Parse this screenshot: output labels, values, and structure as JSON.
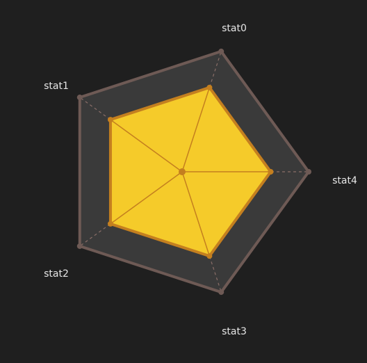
{
  "theme": {
    "background": "#1f1f1f",
    "outer_fill": "#3a3a3a",
    "outer_stroke": "#6e5a55",
    "spoke_dash": "#8a6e68",
    "data_fill": "#f5cb2a",
    "data_stroke": "#c47f1f",
    "label_color": "#e6e6e6"
  },
  "chart_data": {
    "type": "radar",
    "axes": [
      "stat0",
      "stat1",
      "stat2",
      "stat3",
      "stat4"
    ],
    "series": [
      {
        "values": [
          0.7,
          0.7,
          0.7,
          0.7,
          0.7
        ]
      }
    ],
    "range": [
      0,
      1
    ],
    "grid": false,
    "legend": "none"
  }
}
